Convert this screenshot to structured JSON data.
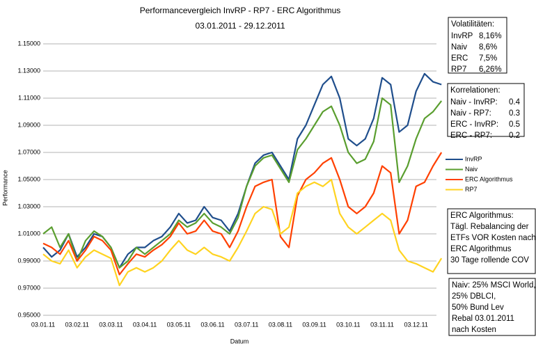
{
  "chart_data": {
    "type": "line",
    "title": "Performancevergleich InvRP - RP7 - ERC Algorithmus",
    "subtitle": "03.01.2011 -    29.12.2011",
    "x_label": "Datum",
    "y_label": "Performance",
    "categories": [
      "03.01.11",
      null,
      null,
      null,
      "03.02.11",
      null,
      null,
      null,
      "03.03.11",
      null,
      null,
      null,
      "03.04.11",
      null,
      null,
      null,
      "03.05.11",
      null,
      null,
      null,
      "03.06.11",
      null,
      null,
      null,
      "03.07.11",
      null,
      null,
      null,
      "03.08.11",
      null,
      null,
      null,
      "03.09.11",
      null,
      null,
      null,
      "03.10.11",
      null,
      null,
      null,
      "03.11.11",
      null,
      null,
      null,
      "03.12.11",
      null,
      null,
      null
    ],
    "ylim": [
      0.95,
      1.15
    ],
    "yticks": [
      {
        "value": 0.95,
        "label": "0.95000"
      },
      {
        "value": 0.97,
        "label": "0.97000"
      },
      {
        "value": 0.99,
        "label": "0.99000"
      },
      {
        "value": 1.01,
        "label": "1.01000"
      },
      {
        "value": 1.03,
        "label": "1.03000"
      },
      {
        "value": 1.05,
        "label": "1.05000"
      },
      {
        "value": 1.07,
        "label": "1.07000"
      },
      {
        "value": 1.09,
        "label": "1.09000"
      },
      {
        "value": 1.11,
        "label": "1.11000"
      },
      {
        "value": 1.13,
        "label": "1.13000"
      },
      {
        "value": 1.15,
        "label": "1.15000"
      }
    ],
    "grid": true,
    "series": [
      {
        "name": "InvRP",
        "color": "#1f4e8c",
        "values": [
          1.0,
          0.993,
          0.998,
          1.01,
          0.993,
          1.0,
          1.01,
          1.008,
          1.0,
          0.985,
          0.995,
          1.0,
          1.0,
          1.005,
          1.008,
          1.015,
          1.025,
          1.018,
          1.02,
          1.03,
          1.022,
          1.02,
          1.012,
          1.025,
          1.045,
          1.062,
          1.068,
          1.07,
          1.06,
          1.05,
          1.08,
          1.09,
          1.105,
          1.12,
          1.126,
          1.11,
          1.08,
          1.075,
          1.08,
          1.095,
          1.125,
          1.12,
          1.085,
          1.09,
          1.115,
          1.128,
          1.122,
          1.12
        ]
      },
      {
        "name": "Naiv",
        "color": "#5a9e2f",
        "values": [
          1.01,
          1.015,
          1.0,
          1.01,
          0.99,
          1.005,
          1.012,
          1.008,
          1.0,
          0.985,
          0.99,
          1.0,
          0.995,
          1.0,
          1.005,
          1.01,
          1.02,
          1.015,
          1.018,
          1.025,
          1.018,
          1.015,
          1.01,
          1.022,
          1.045,
          1.06,
          1.066,
          1.068,
          1.058,
          1.048,
          1.072,
          1.08,
          1.09,
          1.1,
          1.104,
          1.09,
          1.07,
          1.062,
          1.065,
          1.078,
          1.11,
          1.105,
          1.048,
          1.06,
          1.08,
          1.095,
          1.1,
          1.108
        ]
      },
      {
        "name": "ERC Algorithmus",
        "color": "#ff4000",
        "values": [
          1.003,
          1.0,
          0.995,
          1.005,
          0.99,
          0.998,
          1.008,
          1.005,
          0.998,
          0.98,
          0.988,
          0.995,
          0.993,
          0.998,
          1.002,
          1.008,
          1.018,
          1.01,
          1.012,
          1.02,
          1.012,
          1.01,
          1.0,
          1.012,
          1.03,
          1.045,
          1.048,
          1.05,
          1.008,
          1.0,
          1.038,
          1.05,
          1.055,
          1.062,
          1.066,
          1.05,
          1.03,
          1.025,
          1.03,
          1.04,
          1.06,
          1.055,
          1.01,
          1.02,
          1.045,
          1.048,
          1.06,
          1.07
        ]
      },
      {
        "name": "RP7",
        "color": "#ffd320",
        "values": [
          0.995,
          0.99,
          0.988,
          0.998,
          0.985,
          0.993,
          0.998,
          0.995,
          0.992,
          0.972,
          0.982,
          0.985,
          0.982,
          0.985,
          0.99,
          0.998,
          1.005,
          0.998,
          0.995,
          1.0,
          0.995,
          0.993,
          0.99,
          1.0,
          1.012,
          1.025,
          1.03,
          1.028,
          1.01,
          1.015,
          1.04,
          1.045,
          1.048,
          1.045,
          1.05,
          1.025,
          1.015,
          1.01,
          1.015,
          1.02,
          1.025,
          1.02,
          0.998,
          0.99,
          0.988,
          0.985,
          0.982,
          0.992
        ]
      }
    ],
    "boxes": [
      {
        "title": "Volatilitäten:",
        "rows": [
          [
            "InvRP",
            "8,16%"
          ],
          [
            "Naiv",
            "8,6%"
          ],
          [
            "ERC",
            "7,5%"
          ],
          [
            "RP7",
            "6,26%"
          ]
        ]
      },
      {
        "title": "Korrelationen:",
        "rows": [
          [
            "Naiv - InvRP:",
            "0.4"
          ],
          [
            "Naiv - RP7:",
            "0.3"
          ],
          [
            "ERC - InvRP:",
            "0.5"
          ],
          [
            "ERC - RP7:",
            "0.2"
          ]
        ]
      },
      {
        "lines": [
          "ERC Algorithmus:",
          "Tägl. Rebalancing der",
          "ETFs VOR Kosten nach",
          "ERC Algorithmus",
          "30 Tage rollende COV"
        ]
      },
      {
        "lines": [
          "Naiv: 25% MSCI World,",
          "25% DBLCI,",
          "50% Bund Lev",
          "Rebal 03.01.2011",
          "nach Kosten"
        ]
      }
    ]
  }
}
